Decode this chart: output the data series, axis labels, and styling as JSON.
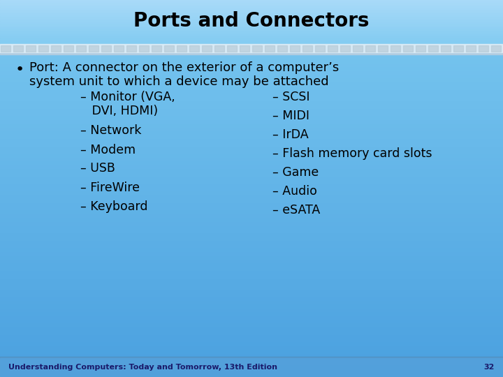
{
  "title": "Ports and Connectors",
  "title_fontsize": 20,
  "title_fontweight": "bold",
  "title_color": "#000000",
  "bg_top_color": "#7ac8f0",
  "bg_bottom_color": "#4aa0e0",
  "separator_color": "#c8e8fa",
  "bullet_line1": "Port: A connector on the exterior of a computer’s",
  "bullet_line2": "system unit to which a device may be attached",
  "left_col": [
    [
      "– Monitor (VGA,",
      0
    ],
    [
      "   DVI, HDMI)",
      1
    ],
    [
      "– Network",
      2
    ],
    [
      "– Modem",
      3
    ],
    [
      "– USB",
      4
    ],
    [
      "– FireWire",
      5
    ],
    [
      "– Keyboard",
      6
    ]
  ],
  "right_col": [
    [
      "– SCSI",
      0
    ],
    [
      "– MIDI",
      1
    ],
    [
      "– IrDA",
      2
    ],
    [
      "– Flash memory card slots",
      3
    ],
    [
      "– Game",
      4
    ],
    [
      "– Audio",
      5
    ],
    [
      "– eSATA",
      6
    ]
  ],
  "footer_text": "Understanding Computers: Today and Tomorrow, 13th Edition",
  "page_number": "32",
  "text_color": "#000000",
  "footer_text_color": "#1a1a6a",
  "content_fontsize": 13,
  "sub_fontsize": 12.5,
  "footer_fontsize": 8
}
